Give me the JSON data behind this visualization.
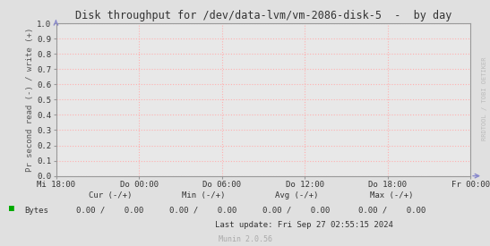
{
  "title": "Disk throughput for /dev/data-lvm/vm-2086-disk-5  -  by day",
  "ylabel": "Pr second read (-) / write (+)",
  "ylim": [
    0.0,
    1.0
  ],
  "yticks": [
    0.0,
    0.1,
    0.2,
    0.3,
    0.4,
    0.5,
    0.6,
    0.7,
    0.8,
    0.9,
    1.0
  ],
  "xtick_labels": [
    "Mi 18:00",
    "Do 00:00",
    "Do 06:00",
    "Do 12:00",
    "Do 18:00",
    "Fr 00:00"
  ],
  "bg_color": "#e0e0e0",
  "plot_bg_color": "#e8e8e8",
  "grid_color": "#ffb0b0",
  "border_color": "#999999",
  "title_color": "#333333",
  "axis_label_color": "#555555",
  "tick_color": "#333333",
  "legend_label": "Bytes",
  "legend_color": "#00aa00",
  "cur_label": "Cur (-/+)",
  "min_label": "Min (-/+)",
  "avg_label": "Avg (-/+)",
  "max_label": "Max (-/+)",
  "cur_val": "0.00 /    0.00",
  "min_val": "0.00 /    0.00",
  "avg_val": "0.00 /    0.00",
  "max_val": "0.00 /    0.00",
  "last_update": "Last update: Fri Sep 27 02:55:15 2024",
  "munin_version": "Munin 2.0.56",
  "watermark": "RRDTOOL / TOBI OETIKER",
  "arrow_color": "#8888cc"
}
